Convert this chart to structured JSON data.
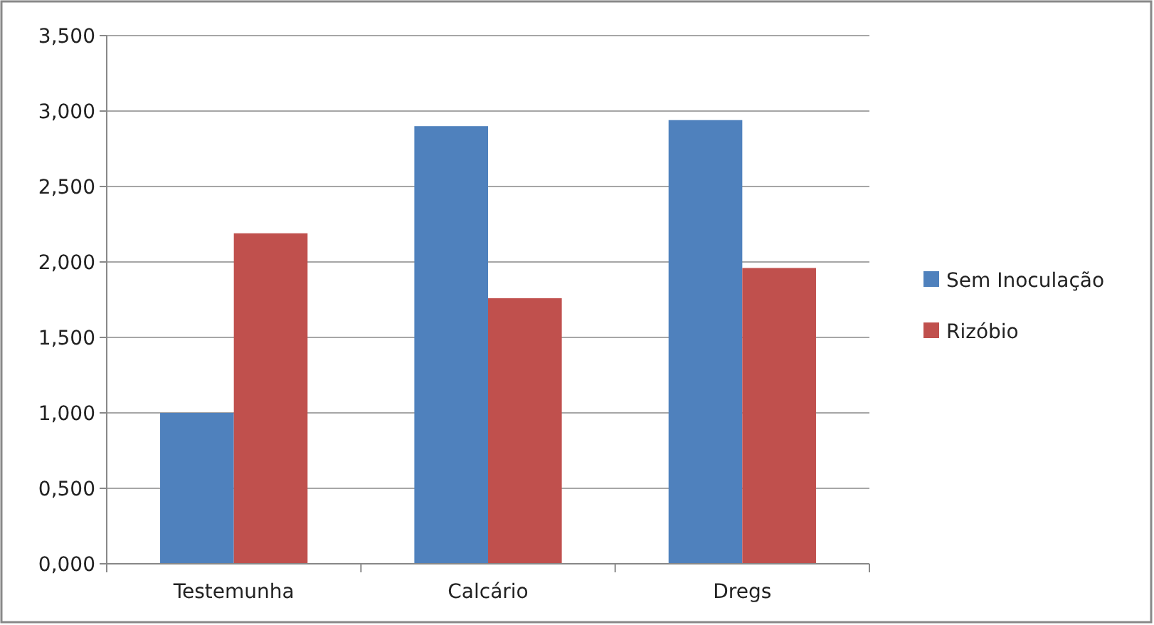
{
  "chart_data": {
    "type": "bar",
    "categories": [
      "Testemunha",
      "Calcário",
      "Dregs"
    ],
    "series": [
      {
        "name": "Sem Inoculação",
        "color": "#4f81bd",
        "values": [
          1.0,
          2.9,
          2.94
        ]
      },
      {
        "name": "Rizóbio",
        "color": "#c0504d",
        "values": [
          2.19,
          1.76,
          1.96
        ]
      }
    ],
    "ylim": [
      0,
      3.5
    ],
    "yticks": [
      {
        "value": 0,
        "label": "0,000"
      },
      {
        "value": 0.5,
        "label": "0,500"
      },
      {
        "value": 1,
        "label": "1,000"
      },
      {
        "value": 1.5,
        "label": "1,500"
      },
      {
        "value": 2,
        "label": "2,000"
      },
      {
        "value": 2.5,
        "label": "2,500"
      },
      {
        "value": 3,
        "label": "3,000"
      },
      {
        "value": 3.5,
        "label": "3,500"
      }
    ],
    "grid": "y",
    "legend": "right"
  }
}
